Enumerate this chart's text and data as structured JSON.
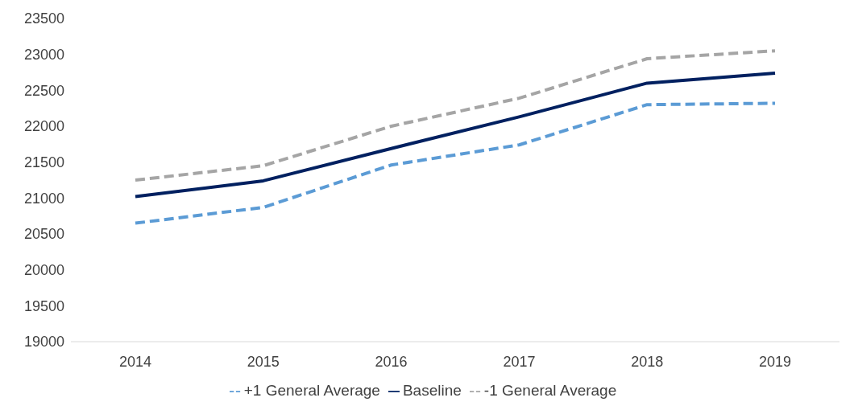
{
  "chart_data": {
    "type": "line",
    "categories": [
      "2014",
      "2015",
      "2016",
      "2017",
      "2018",
      "2019"
    ],
    "series": [
      {
        "name": "+1 General Average",
        "color": "#5b9bd5",
        "line_style": "dashed",
        "values": [
          20650,
          20870,
          21460,
          21740,
          22300,
          22320
        ]
      },
      {
        "name": "Baseline",
        "color": "#002060",
        "line_style": "solid",
        "values": [
          21020,
          21240,
          21690,
          22130,
          22600,
          22740
        ]
      },
      {
        "name": "-1 General Average",
        "color": "#a5a5a5",
        "line_style": "dashed",
        "values": [
          21250,
          21450,
          22000,
          22390,
          22940,
          23050
        ]
      }
    ],
    "ylim": [
      19000,
      23500
    ],
    "yticks": [
      19000,
      19500,
      20000,
      20500,
      21000,
      21500,
      22000,
      22500,
      23000,
      23500
    ],
    "grid": false,
    "legend": "bottom",
    "marker": "none"
  }
}
